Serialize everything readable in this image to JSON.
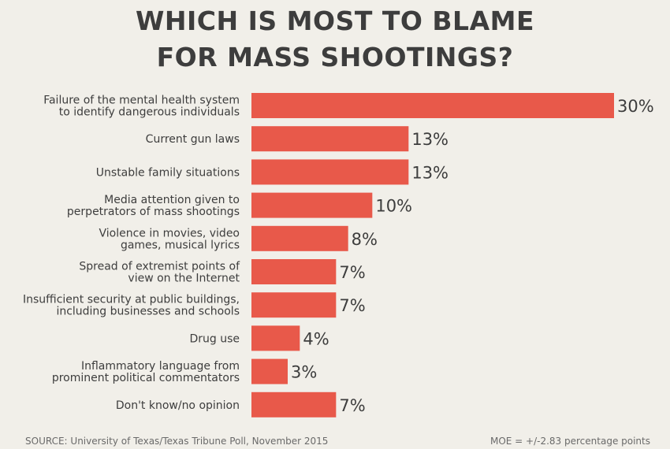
{
  "title": {
    "line1": "WHICH IS MOST TO BLAME",
    "line2": "FOR MASS SHOOTINGS?"
  },
  "footer": {
    "source": "SOURCE: University of Texas/Texas Tribune Poll, November 2015",
    "moe": "MOE = +/-2.83 percentage points"
  },
  "colors": {
    "bar": "#e8594a",
    "background": "#f1efe9",
    "text": "#3d3d3d"
  },
  "chart_data": {
    "type": "bar",
    "orientation": "horizontal",
    "title": "WHICH IS MOST TO BLAME FOR MASS SHOOTINGS?",
    "categories": [
      [
        "Failure of the mental health system",
        "to identify dangerous individuals"
      ],
      [
        "Current gun laws"
      ],
      [
        "Unstable family situations"
      ],
      [
        "Media attention given to",
        "perpetrators of mass shootings"
      ],
      [
        "Violence in movies, video",
        "games, musical lyrics"
      ],
      [
        "Spread of extremist points of",
        "view on the Internet"
      ],
      [
        "Insufficient security at public buildings,",
        "including businesses and schools"
      ],
      [
        "Drug use"
      ],
      [
        "Inflammatory language from",
        "prominent political commentators"
      ],
      [
        "Don't know/no opinion"
      ]
    ],
    "values": [
      30,
      13,
      13,
      10,
      8,
      7,
      7,
      4,
      3,
      7
    ],
    "value_labels": [
      "30%",
      "13%",
      "13%",
      "10%",
      "8%",
      "7%",
      "7%",
      "4%",
      "3%",
      "7%"
    ],
    "unit": "%",
    "xlim": [
      0,
      30
    ],
    "grid": false,
    "legend": "none"
  }
}
